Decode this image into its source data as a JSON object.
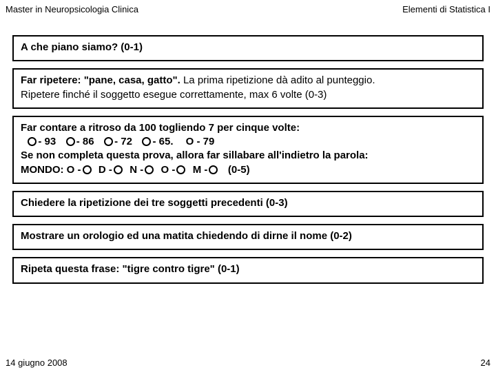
{
  "header": {
    "left": "Master in Neuropsicologia Clinica",
    "right": "Elementi di Statistica I"
  },
  "items": {
    "q1": {
      "text": "A che piano siamo? (0-1)"
    },
    "q2": {
      "bold_lead": "Far ripetere: \"pane, casa, gatto\".",
      "rest1": " La prima ripetizione dà adito al punteggio.",
      "line2": "Ripetere finché il soggetto esegue correttamente, max 6 volte (0-3)"
    },
    "q3": {
      "line1": "Far contare a ritroso da 100 togliendo 7 per cinque volte:",
      "v1": "- 93",
      "v2": "- 86",
      "v3": "- 72",
      "v4": "- 65.",
      "annot": "O - 79",
      "line3a": "Se non completa questa prova, allora far sillabare all'indietro la parola:",
      "line3b_lead": "MONDO:",
      "mO": "O -",
      "mD": "D -",
      "mN": "N -",
      "mO2": "O -",
      "mM": "M -",
      "range": "(0-5)"
    },
    "q4": {
      "text": "Chiedere la ripetizione dei tre soggetti precedenti (0-3)"
    },
    "q5": {
      "text": "Mostrare un orologio ed una matita chiedendo di dirne il nome (0-2)"
    },
    "q6": {
      "text": "Ripeta questa frase: \"tigre contro tigre\" (0-1)"
    }
  },
  "footer": {
    "date": "14 giugno 2008",
    "page": "24"
  }
}
